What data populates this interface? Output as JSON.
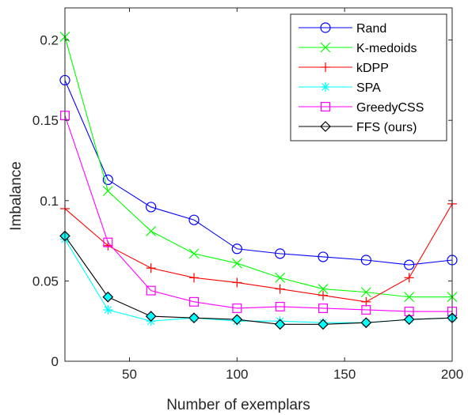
{
  "chart_data": {
    "type": "line",
    "title": "",
    "xlabel": "Number of exemplars",
    "ylabel": "Imbalance",
    "xlim": [
      20,
      200
    ],
    "ylim": [
      0,
      0.22
    ],
    "xticks": [
      50,
      100,
      150,
      200
    ],
    "yticks": [
      0,
      0.05,
      0.1,
      0.15,
      0.2
    ],
    "xtick_labels": [
      "50",
      "100",
      "150",
      "200"
    ],
    "ytick_labels": [
      "0",
      "0.05",
      "0.1",
      "0.15",
      "0.2"
    ],
    "grid": false,
    "legend_position": "top-right",
    "x": [
      20,
      40,
      60,
      80,
      100,
      120,
      140,
      160,
      180,
      200
    ],
    "series": [
      {
        "name": "Rand",
        "color": "#0000ff",
        "marker": "circle",
        "values": [
          0.175,
          0.113,
          0.096,
          0.088,
          0.07,
          0.067,
          0.065,
          0.063,
          0.06,
          0.063
        ]
      },
      {
        "name": "K-medoids",
        "color": "#00ff00",
        "marker": "x",
        "values": [
          0.202,
          0.106,
          0.081,
          0.067,
          0.061,
          0.052,
          0.045,
          0.043,
          0.04,
          0.04
        ]
      },
      {
        "name": "kDPP",
        "color": "#ff0000",
        "marker": "plus",
        "values": [
          0.095,
          0.072,
          0.058,
          0.052,
          0.049,
          0.045,
          0.041,
          0.037,
          0.052,
          0.098
        ]
      },
      {
        "name": "SPA",
        "color": "#00ffff",
        "marker": "star",
        "values": [
          0.076,
          0.032,
          0.025,
          0.027,
          0.025,
          0.025,
          0.024,
          0.024,
          0.026,
          0.027
        ]
      },
      {
        "name": "GreedyCSS",
        "color": "#ff00ff",
        "marker": "square",
        "values": [
          0.153,
          0.074,
          0.044,
          0.037,
          0.033,
          0.034,
          0.033,
          0.032,
          0.031,
          0.031
        ]
      },
      {
        "name": "FFS (ours)",
        "color": "#000000",
        "marker": "diamond",
        "values": [
          0.078,
          0.04,
          0.028,
          0.027,
          0.026,
          0.023,
          0.023,
          0.024,
          0.026,
          0.027
        ]
      }
    ]
  }
}
